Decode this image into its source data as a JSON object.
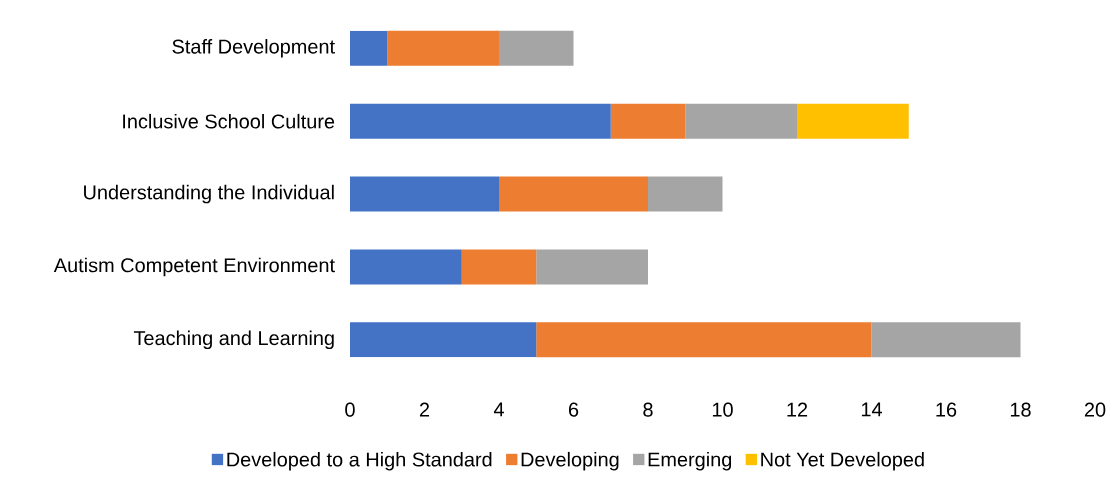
{
  "chart_data": {
    "type": "bar",
    "orientation": "horizontal",
    "stacked": true,
    "categories": [
      "Staff Development",
      "Inclusive School Culture",
      "Understanding the Individual",
      "Autism Competent Environment",
      "Teaching and Learning"
    ],
    "series": [
      {
        "name": "Developed to a High Standard",
        "color": "#4472c4",
        "values": [
          1,
          7,
          4,
          3,
          5
        ]
      },
      {
        "name": "Developing",
        "color": "#ed7d31",
        "values": [
          3,
          2,
          4,
          2,
          9
        ]
      },
      {
        "name": "Emerging",
        "color": "#a5a5a5",
        "values": [
          2,
          3,
          2,
          3,
          4
        ]
      },
      {
        "name": "Not Yet Developed",
        "color": "#ffc000",
        "values": [
          0,
          3,
          0,
          0,
          0
        ]
      }
    ],
    "xlim": [
      0,
      20
    ],
    "xticks": [
      0,
      2,
      4,
      6,
      8,
      10,
      12,
      14,
      16,
      18,
      20
    ],
    "grid": false,
    "legend": "bottom"
  }
}
